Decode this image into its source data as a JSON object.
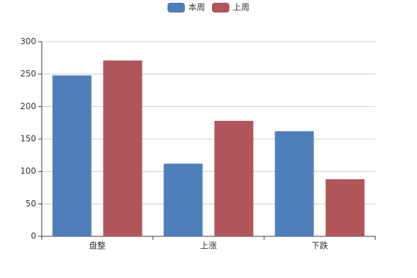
{
  "chart_data": {
    "type": "bar",
    "categories": [
      "盘整",
      "上涨",
      "下跌"
    ],
    "series": [
      {
        "name": "本周",
        "color": "#4e7fbb",
        "values": [
          248,
          112,
          162
        ]
      },
      {
        "name": "上周",
        "color": "#b0555a",
        "values": [
          271,
          178,
          88
        ]
      }
    ],
    "ylim": [
      0,
      300
    ],
    "yticks": [
      0,
      50,
      100,
      150,
      200,
      250,
      300
    ],
    "grid": true,
    "legend": "top"
  }
}
